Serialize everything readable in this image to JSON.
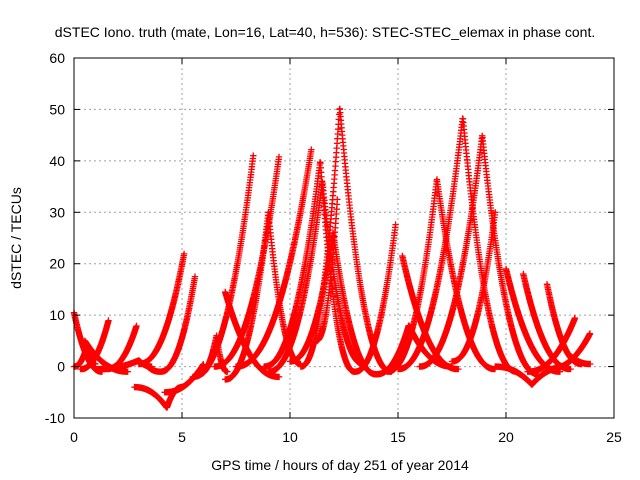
{
  "chart_data": {
    "type": "scatter",
    "title": "dSTEC Iono. truth (mate, Lon=16, Lat=40, h=536): STEC-STEC_elemax in phase cont.",
    "xlabel": "GPS time / hours of day 251 of year 2014",
    "ylabel": "dSTEC  / TECUs",
    "xlim": [
      0,
      25
    ],
    "ylim": [
      -10,
      60
    ],
    "xticks": [
      0,
      5,
      10,
      15,
      20,
      25
    ],
    "yticks": [
      -10,
      0,
      10,
      20,
      30,
      40,
      50,
      60
    ],
    "xtick_labels": [
      "0",
      "5",
      "10",
      "15",
      "20",
      "25"
    ],
    "ytick_labels": [
      "-10",
      "0",
      "10",
      "20",
      "30",
      "40",
      "50",
      "60"
    ],
    "grid": true,
    "marker": "+",
    "color": "#ff0000",
    "arcs": [
      {
        "start": 0.0,
        "peak": 0.0,
        "end": 1.3,
        "peakValue": 10.5,
        "startValue": 10.5,
        "endValue": -1.0
      },
      {
        "start": 0.0,
        "peak": 0.6,
        "end": 1.0,
        "peakValue": 4.0,
        "startValue": 0.0,
        "endValue": 0.5
      },
      {
        "start": 0.3,
        "peak": 1.6,
        "end": 1.6,
        "peakValue": 9.0,
        "startValue": -0.5,
        "endValue": 9.0
      },
      {
        "start": 0.5,
        "peak": 0.5,
        "end": 2.5,
        "peakValue": 5.0,
        "startValue": 5.0,
        "endValue": -1.0
      },
      {
        "start": 1.5,
        "peak": 2.9,
        "end": 2.9,
        "peakValue": 8.0,
        "startValue": -0.5,
        "endValue": 8.0
      },
      {
        "start": 1.0,
        "peak": 3.0,
        "end": 3.6,
        "peakValue": 1.2,
        "startValue": -0.5,
        "endValue": 0.0
      },
      {
        "start": 2.8,
        "peak": 4.3,
        "end": 5.0,
        "peakValue": -8.0,
        "startValue": -4.0,
        "endValue": -4.0
      },
      {
        "start": 3.3,
        "peak": 3.3,
        "end": 4.0,
        "peakValue": 0.5,
        "startValue": 0.5,
        "endValue": -1.0
      },
      {
        "start": 3.0,
        "peak": 5.1,
        "end": 5.1,
        "peakValue": 22.0,
        "startValue": 0.5,
        "endValue": 22.0
      },
      {
        "start": 4.0,
        "peak": 5.6,
        "end": 5.6,
        "peakValue": 17.5,
        "startValue": -1.0,
        "endValue": 17.5
      },
      {
        "start": 4.2,
        "peak": 6.0,
        "end": 6.0,
        "peakValue": 0.5,
        "startValue": -5.0,
        "endValue": 0.5
      },
      {
        "start": 5.8,
        "peak": 6.6,
        "end": 7.1,
        "peakValue": 6.0,
        "startValue": -1.5,
        "endValue": -1.0
      },
      {
        "start": 5.5,
        "peak": 8.3,
        "end": 8.3,
        "peakValue": 41.0,
        "startValue": -2.0,
        "endValue": 41.0
      },
      {
        "start": 7.0,
        "peak": 7.0,
        "end": 9.5,
        "peakValue": 14.5,
        "startValue": 14.5,
        "endValue": -2.0
      },
      {
        "start": 7.0,
        "peak": 9.0,
        "end": 10.5,
        "peakValue": 30.0,
        "startValue": -2.5,
        "endValue": 0.5
      },
      {
        "start": 6.5,
        "peak": 9.5,
        "end": 9.5,
        "peakValue": 41.0,
        "startValue": 0.0,
        "endValue": 41.0
      },
      {
        "start": 7.5,
        "peak": 11.0,
        "end": 11.0,
        "peakValue": 42.5,
        "startValue": 0.0,
        "endValue": 42.5
      },
      {
        "start": 8.8,
        "peak": 11.4,
        "end": 13.0,
        "peakValue": 40.0,
        "startValue": 0.0,
        "endValue": -1.0
      },
      {
        "start": 9.0,
        "peak": 11.5,
        "end": 13.4,
        "peakValue": 36.0,
        "startValue": -1.0,
        "endValue": 0.5
      },
      {
        "start": 10.0,
        "peak": 12.0,
        "end": 14.0,
        "peakValue": 26.0,
        "startValue": 1.0,
        "endValue": -1.5
      },
      {
        "start": 10.5,
        "peak": 12.3,
        "end": 14.7,
        "peakValue": 50.5,
        "startValue": 0.0,
        "endValue": -1.0
      },
      {
        "start": 11.2,
        "peak": 12.2,
        "end": 12.2,
        "peakValue": 33.0,
        "startValue": 5.0,
        "endValue": 33.0
      },
      {
        "start": 13.0,
        "peak": 14.9,
        "end": 14.9,
        "peakValue": 28.0,
        "startValue": -1.0,
        "endValue": 28.0
      },
      {
        "start": 14.0,
        "peak": 15.5,
        "end": 17.5,
        "peakValue": 8.0,
        "startValue": -1.5,
        "endValue": 0.0
      },
      {
        "start": 15.2,
        "peak": 15.2,
        "end": 17.8,
        "peakValue": 21.5,
        "startValue": 21.5,
        "endValue": -0.5
      },
      {
        "start": 14.5,
        "peak": 16.8,
        "end": 19.5,
        "peakValue": 36.5,
        "startValue": -1.0,
        "endValue": -0.5
      },
      {
        "start": 15.0,
        "peak": 18.0,
        "end": 20.5,
        "peakValue": 48.5,
        "startValue": -0.5,
        "endValue": -1.0
      },
      {
        "start": 16.0,
        "peak": 18.9,
        "end": 21.5,
        "peakValue": 45.0,
        "startValue": 0.0,
        "endValue": -1.5
      },
      {
        "start": 17.5,
        "peak": 19.5,
        "end": 19.5,
        "peakValue": 30.0,
        "startValue": 1.0,
        "endValue": 30.0
      },
      {
        "start": 20.0,
        "peak": 20.0,
        "end": 22.5,
        "peakValue": 19.0,
        "startValue": 19.0,
        "endValue": -1.0
      },
      {
        "start": 20.8,
        "peak": 20.8,
        "end": 23.0,
        "peakValue": 18.0,
        "startValue": 18.0,
        "endValue": -0.5
      },
      {
        "start": 21.9,
        "peak": 21.9,
        "end": 23.5,
        "peakValue": 16.0,
        "startValue": 16.0,
        "endValue": 0.5
      },
      {
        "start": 19.5,
        "peak": 21.2,
        "end": 22.8,
        "peakValue": -3.5,
        "startValue": 0.0,
        "endValue": 0.0
      },
      {
        "start": 21.0,
        "peak": 23.2,
        "end": 23.2,
        "peakValue": 9.5,
        "startValue": -1.0,
        "endValue": 9.5
      },
      {
        "start": 22.0,
        "peak": 23.9,
        "end": 23.9,
        "peakValue": 6.5,
        "startValue": -0.5,
        "endValue": 6.5
      },
      {
        "start": 23.0,
        "peak": 23.0,
        "end": 23.9,
        "peakValue": 2.0,
        "startValue": 2.0,
        "endValue": 0.5
      }
    ]
  }
}
